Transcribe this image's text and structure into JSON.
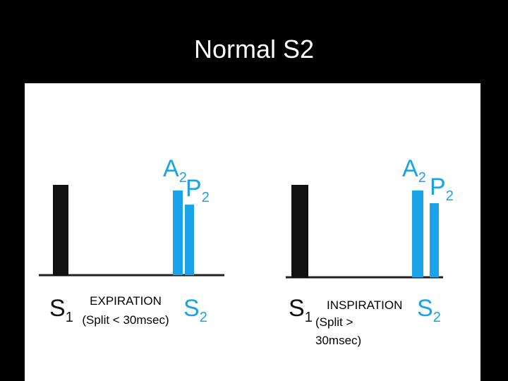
{
  "title": "Normal S2",
  "panels": [
    {
      "s1": {
        "letter": "S",
        "sub": "1"
      },
      "s2": {
        "letter": "S",
        "sub": "2"
      },
      "a2": {
        "letter": "A",
        "sub": "2"
      },
      "p2": {
        "letter": "P",
        "sub": "2"
      },
      "phase": "EXPIRATION",
      "note": [
        "(Split < 30msec)"
      ]
    },
    {
      "s1": {
        "letter": "S",
        "sub": "1"
      },
      "s2": {
        "letter": "S",
        "sub": "2"
      },
      "a2": {
        "letter": "A",
        "sub": "2"
      },
      "p2": {
        "letter": "P",
        "sub": "2"
      },
      "phase": "INSPIRATION",
      "note": [
        "(Split >",
        "30msec)"
      ]
    }
  ]
}
